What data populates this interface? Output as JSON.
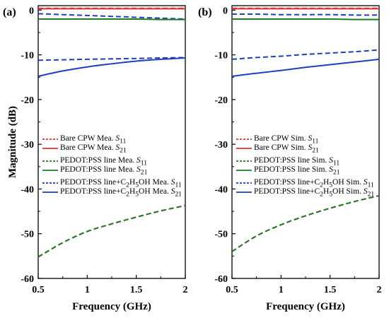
{
  "chart_data": [
    {
      "type": "line",
      "panel_label": "(a)",
      "xlabel": "Frequency (GHz)",
      "ylabel": "Magnitude (dB)",
      "xlim": [
        0.5,
        2
      ],
      "ylim": [
        -60,
        1
      ],
      "xticks": [
        0.5,
        1,
        1.5,
        2
      ],
      "xtick_labels": [
        "0.5",
        "1",
        "1.5",
        "2"
      ],
      "yticks": [
        0,
        -10,
        -20,
        -30,
        -40,
        -50,
        -60
      ],
      "ytick_labels": [
        "0",
        "-10",
        "-20",
        "-30",
        "-40",
        "-50",
        "-60"
      ],
      "grid": false,
      "legend_position": "middle-left",
      "x": [
        0.5,
        0.75,
        1,
        1.25,
        1.5,
        1.75,
        2
      ],
      "series": [
        {
          "name": "Bare CPW Mea. S11",
          "name_html": "Bare CPW Mea. <i>S</i><sub>11</sub>",
          "color": "#e8312f",
          "dash": "dashed",
          "values": [
            -55.2,
            -52.0,
            -49.5,
            -47.8,
            -46.3,
            -44.9,
            -43.7
          ]
        },
        {
          "name": "Bare CPW Mea. S21",
          "name_html": "Bare CPW Mea. <i>S</i><sub>21</sub>",
          "color": "#e8312f",
          "dash": "solid",
          "values": [
            0.3,
            0.3,
            0.3,
            0.3,
            0.3,
            0.3,
            0.3
          ]
        },
        {
          "name": "PEDOT:PSS line Mea. S11",
          "name_html": "PEDOT:PSS line Mea. <i>S</i><sub>11</sub>",
          "color": "#1f7a2a",
          "dash": "dashed",
          "values": [
            -55.2,
            -52.0,
            -49.5,
            -47.8,
            -46.3,
            -44.9,
            -43.7
          ]
        },
        {
          "name": "PEDOT:PSS line Mea. S21",
          "name_html": "PEDOT:PSS line Mea. <i>S</i><sub>21</sub>",
          "color": "#1f7a2a",
          "dash": "solid",
          "values": [
            -2.0,
            -2.0,
            -2.0,
            -2.0,
            -2.0,
            -2.1,
            -2.1
          ]
        },
        {
          "name": "PEDOT:PSS line+C2H5OH Mea. S11",
          "name_html": "PEDOT:PSS line+C<sub>2</sub>H<sub>5</sub>OH Mea. <i>S</i><sub>11</sub>",
          "color": "#1f3fbf",
          "dash": "dashed",
          "values": [
            -11.2,
            -11.1,
            -11.0,
            -10.9,
            -10.8,
            -10.7,
            -10.6
          ]
        },
        {
          "name": "PEDOT:PSS line+C2H5OH Mea. S21",
          "name_html": "PEDOT:PSS line+C<sub>2</sub>H<sub>5</sub>OH Mea. <i>S</i><sub>21</sub>",
          "color": "#1f3fbf",
          "dash": "solid",
          "values": [
            -14.8,
            -13.6,
            -12.7,
            -12.0,
            -11.4,
            -11.0,
            -10.7
          ]
        }
      ],
      "extra_lines": [
        {
          "color": "#1f3fbf",
          "dash": "dashed",
          "values": [
            -0.8,
            -1.0,
            -1.2,
            -1.4,
            -1.6,
            -1.8,
            -2.0
          ]
        },
        {
          "color": "#e8312f",
          "dash": "dashed",
          "values": [
            0.4,
            0.4,
            0.4,
            0.4,
            0.4,
            0.4,
            0.4
          ]
        }
      ]
    },
    {
      "type": "line",
      "panel_label": "(b)",
      "xlabel": "Frequency (GHz)",
      "ylabel": "",
      "xlim": [
        0.5,
        2
      ],
      "ylim": [
        -60,
        1
      ],
      "xticks": [
        0.5,
        1,
        1.5,
        2
      ],
      "xtick_labels": [
        "0.5",
        "1",
        "1.5",
        "2"
      ],
      "yticks": [
        0,
        -10,
        -20,
        -30,
        -40,
        -50,
        -60
      ],
      "ytick_labels": [
        "0",
        "-10",
        "-20",
        "-30",
        "-40",
        "-50",
        "-60"
      ],
      "grid": false,
      "legend_position": "middle-left",
      "x": [
        0.5,
        0.75,
        1,
        1.25,
        1.5,
        1.75,
        2
      ],
      "series": [
        {
          "name": "Bare CPW Sim. S11",
          "name_html": "Bare CPW Sim. <i>S</i><sub>11</sub>",
          "color": "#e8312f",
          "dash": "dashed",
          "values": [
            -54.0,
            -50.5,
            -48.0,
            -46.0,
            -44.3,
            -42.8,
            -41.5
          ]
        },
        {
          "name": "Bare CPW Sim. S21",
          "name_html": "Bare CPW Sim. <i>S</i><sub>21</sub>",
          "color": "#e8312f",
          "dash": "solid",
          "values": [
            0.3,
            0.3,
            0.3,
            0.3,
            0.3,
            0.3,
            0.3
          ]
        },
        {
          "name": "PEDOT:PSS line Sim. S11",
          "name_html": "PEDOT:PSS line Sim. <i>S</i><sub>11</sub>",
          "color": "#1f7a2a",
          "dash": "dashed",
          "values": [
            -54.0,
            -50.5,
            -48.0,
            -46.0,
            -44.3,
            -42.8,
            -41.5
          ]
        },
        {
          "name": "PEDOT:PSS line Sim. S21",
          "name_html": "PEDOT:PSS line Sim. <i>S</i><sub>21</sub>",
          "color": "#1f7a2a",
          "dash": "solid",
          "values": [
            -2.0,
            -2.0,
            -2.0,
            -2.0,
            -2.0,
            -2.1,
            -2.1
          ]
        },
        {
          "name": "PEDOT:PSS line+C2H5OH Sim. S11",
          "name_html": "PEDOT:PSS line+C<sub>2</sub>H<sub>5</sub>OH Sim. <i>S</i><sub>11</sub>",
          "color": "#1f3fbf",
          "dash": "dashed",
          "values": [
            -11.0,
            -10.6,
            -10.3,
            -9.9,
            -9.6,
            -9.3,
            -8.9
          ]
        },
        {
          "name": "PEDOT:PSS line+C2H5OH Sim. S21",
          "name_html": "PEDOT:PSS line+C<sub>2</sub>H<sub>5</sub>OH Sim. <i>S</i><sub>21</sub>",
          "color": "#1f3fbf",
          "dash": "solid",
          "values": [
            -14.8,
            -14.1,
            -13.5,
            -12.8,
            -12.2,
            -11.6,
            -11.0
          ]
        }
      ],
      "extra_lines": [
        {
          "color": "#1f3fbf",
          "dash": "dashed",
          "values": [
            -0.9,
            -0.9,
            -1.0,
            -1.0,
            -1.0,
            -1.1,
            -1.1
          ]
        },
        {
          "color": "#e8312f",
          "dash": "dashed",
          "values": [
            0.4,
            0.4,
            0.4,
            0.4,
            0.4,
            0.4,
            0.4
          ]
        }
      ]
    }
  ]
}
